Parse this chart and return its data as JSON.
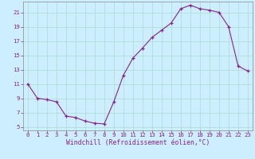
{
  "x": [
    0,
    1,
    2,
    3,
    4,
    5,
    6,
    7,
    8,
    9,
    10,
    11,
    12,
    13,
    14,
    15,
    16,
    17,
    18,
    19,
    20,
    21,
    22,
    23
  ],
  "y": [
    11.0,
    9.0,
    8.8,
    8.5,
    6.5,
    6.3,
    5.8,
    5.5,
    5.4,
    8.5,
    12.2,
    14.6,
    16.0,
    17.5,
    18.5,
    19.5,
    21.5,
    22.0,
    21.5,
    21.3,
    21.0,
    19.0,
    13.5,
    12.8
  ],
  "line_color": "#882288",
  "marker": "+",
  "marker_size": 3,
  "bg_color": "#cceeff",
  "grid_color": "#aaddcc",
  "xlabel": "Windchill (Refroidissement éolien,°C)",
  "xlim": [
    -0.5,
    23.5
  ],
  "ylim": [
    4.5,
    22.5
  ],
  "yticks": [
    5,
    7,
    9,
    11,
    13,
    15,
    17,
    19,
    21
  ],
  "xticks": [
    0,
    1,
    2,
    3,
    4,
    5,
    6,
    7,
    8,
    9,
    10,
    11,
    12,
    13,
    14,
    15,
    16,
    17,
    18,
    19,
    20,
    21,
    22,
    23
  ],
  "tick_fontsize": 5.2,
  "xlabel_fontsize": 5.8,
  "spine_color": "#888888"
}
